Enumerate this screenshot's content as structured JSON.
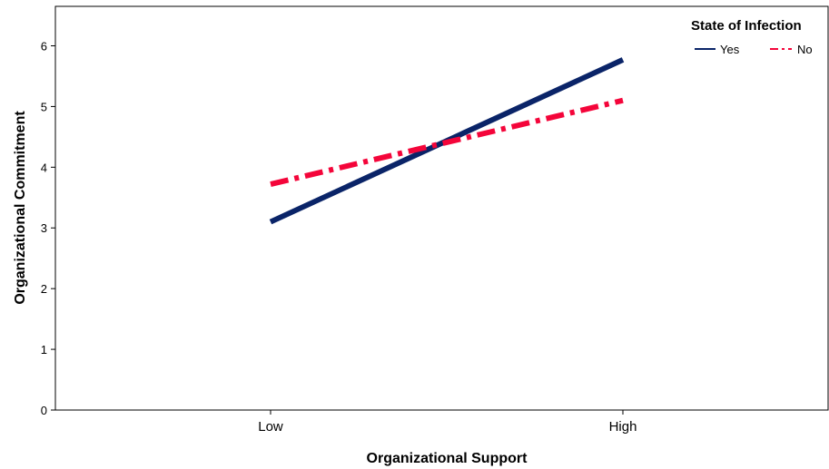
{
  "chart_data": {
    "type": "line",
    "categories": [
      "Low",
      "High"
    ],
    "series": [
      {
        "name": "Yes",
        "values": [
          3.1,
          5.77
        ],
        "color": "#0a2468",
        "line_style": "solid"
      },
      {
        "name": "No",
        "values": [
          3.72,
          5.1
        ],
        "color": "#f4053a",
        "line_style": "dash-dot"
      }
    ],
    "xlabel": "Organizational Support",
    "ylabel": "Organizational Commitment",
    "ylim": [
      0,
      6.65
    ],
    "yticks": [
      0,
      1,
      2,
      3,
      4,
      5,
      6
    ],
    "grid": false,
    "legend": {
      "title": "State of Infection",
      "placement": "top-right"
    }
  }
}
